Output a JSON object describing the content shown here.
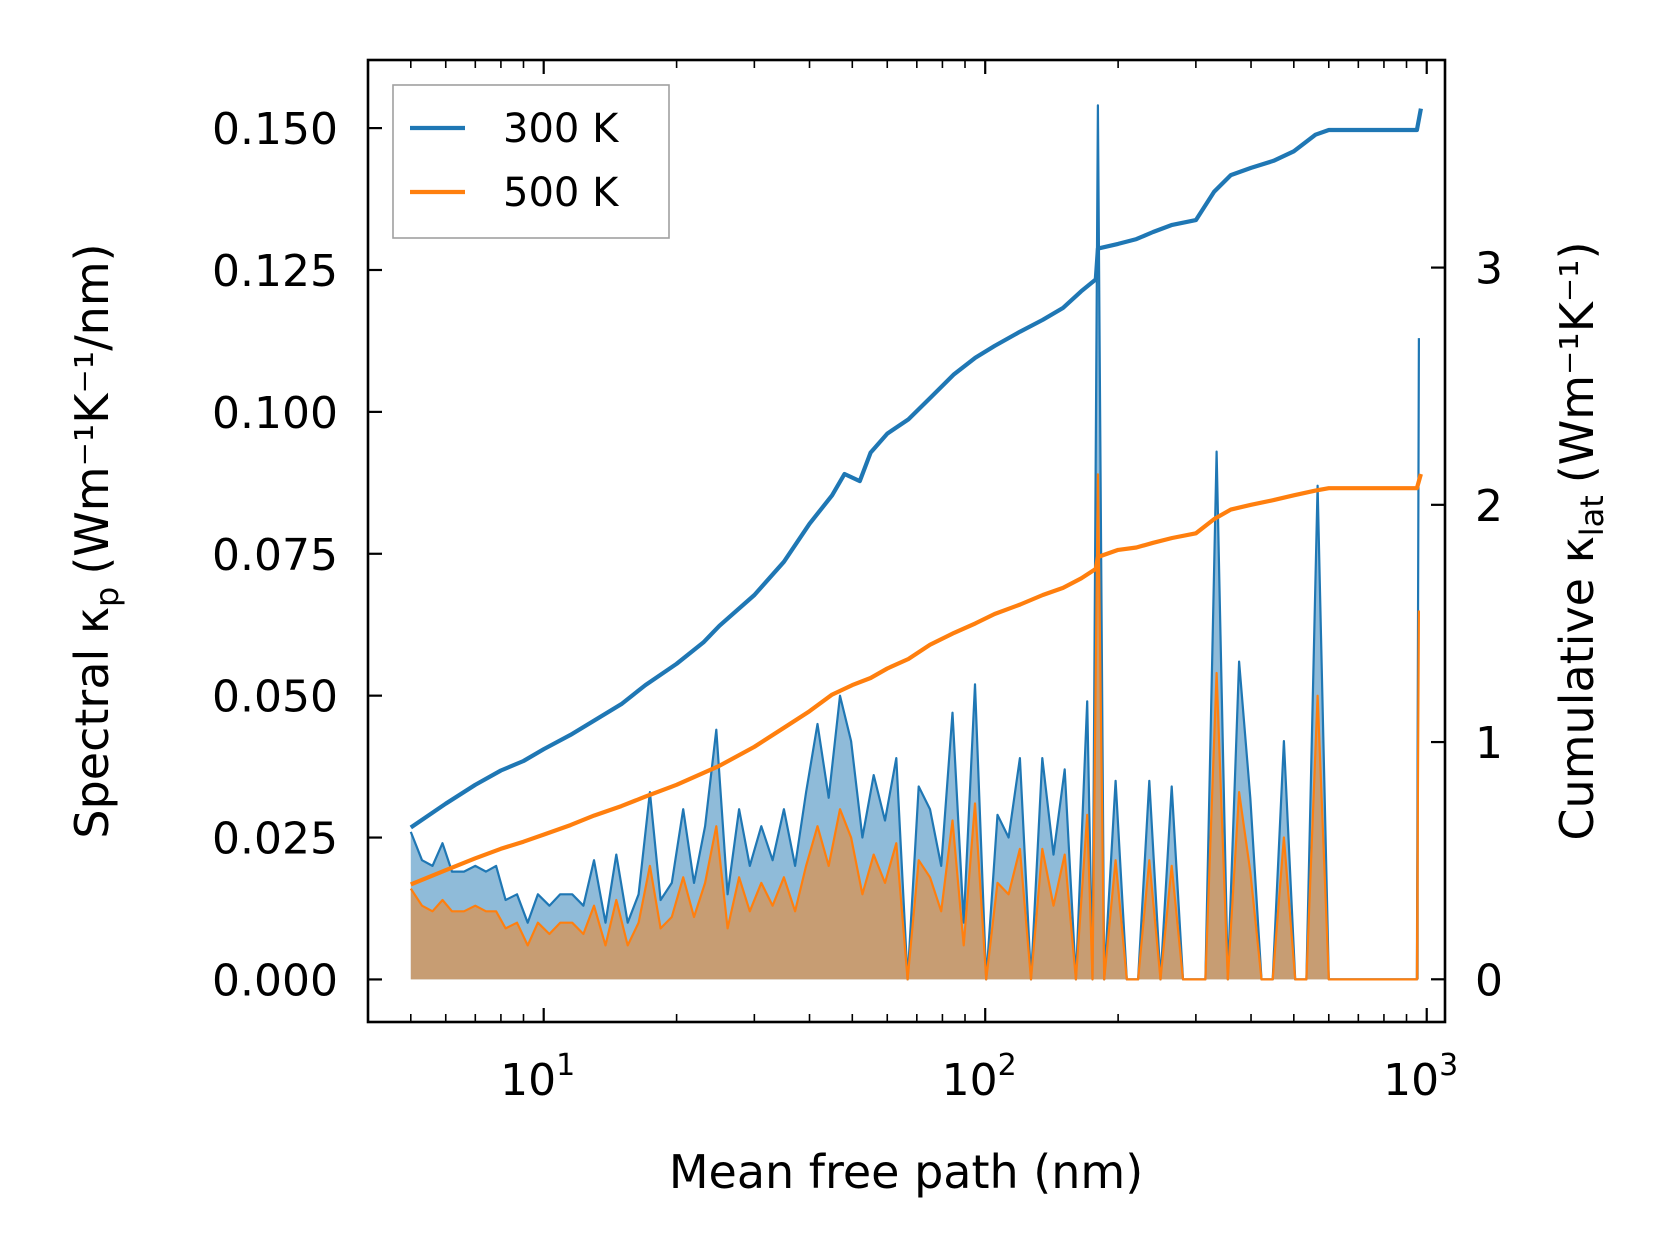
{
  "chart_data": {
    "type": "line",
    "title": "",
    "xlabel": "Mean free path (nm)",
    "ylabel_left": {
      "main": "Spectral κ",
      "sub": "p",
      "units": "(Wm⁻¹K⁻¹/nm)"
    },
    "ylabel_right": {
      "main": "Cumulative κ",
      "sub": "lat",
      "units": "(Wm⁻¹K⁻¹)"
    },
    "xscale": "log",
    "xlim": [
      4.0,
      1100
    ],
    "ylim_left": [
      -0.0075,
      0.162
    ],
    "ylim_right": [
      -0.18,
      3.875
    ],
    "x_ticks": [
      {
        "value": 10,
        "base": "10",
        "exp": "1"
      },
      {
        "value": 100,
        "base": "10",
        "exp": "2"
      },
      {
        "value": 1000,
        "base": "10",
        "exp": "3"
      }
    ],
    "y_ticks_left": [
      {
        "value": 0.0,
        "label": "0.000"
      },
      {
        "value": 0.025,
        "label": "0.025"
      },
      {
        "value": 0.05,
        "label": "0.050"
      },
      {
        "value": 0.075,
        "label": "0.075"
      },
      {
        "value": 0.1,
        "label": "0.100"
      },
      {
        "value": 0.125,
        "label": "0.125"
      },
      {
        "value": 0.15,
        "label": "0.150"
      }
    ],
    "y_ticks_right": [
      {
        "value": 0,
        "label": "0"
      },
      {
        "value": 1,
        "label": "1"
      },
      {
        "value": 2,
        "label": "2"
      },
      {
        "value": 3,
        "label": "3"
      }
    ],
    "legend": {
      "position": "top-left",
      "entries": [
        "300 K",
        "500 K"
      ]
    },
    "series": [
      {
        "name": "300 K",
        "color": "#1f77b4",
        "fill_color": "#1f77b4",
        "spectral": [
          [
            5.0,
            0.026
          ],
          [
            5.3,
            0.021
          ],
          [
            5.6,
            0.02
          ],
          [
            5.9,
            0.024
          ],
          [
            6.2,
            0.019
          ],
          [
            6.6,
            0.019
          ],
          [
            7.0,
            0.02
          ],
          [
            7.4,
            0.019
          ],
          [
            7.8,
            0.02
          ],
          [
            8.2,
            0.014
          ],
          [
            8.7,
            0.015
          ],
          [
            9.2,
            0.01
          ],
          [
            9.7,
            0.015
          ],
          [
            10.3,
            0.013
          ],
          [
            10.9,
            0.015
          ],
          [
            11.6,
            0.015
          ],
          [
            12.3,
            0.013
          ],
          [
            13.0,
            0.021
          ],
          [
            13.8,
            0.01
          ],
          [
            14.6,
            0.022
          ],
          [
            15.5,
            0.01
          ],
          [
            16.4,
            0.015
          ],
          [
            17.4,
            0.033
          ],
          [
            18.4,
            0.014
          ],
          [
            19.5,
            0.017
          ],
          [
            20.7,
            0.03
          ],
          [
            21.9,
            0.017
          ],
          [
            23.2,
            0.027
          ],
          [
            24.6,
            0.044
          ],
          [
            26.1,
            0.015
          ],
          [
            27.7,
            0.03
          ],
          [
            29.3,
            0.02
          ],
          [
            31.1,
            0.027
          ],
          [
            33.0,
            0.021
          ],
          [
            35.0,
            0.03
          ],
          [
            37.1,
            0.02
          ],
          [
            39.3,
            0.033
          ],
          [
            41.7,
            0.045
          ],
          [
            44.2,
            0.032
          ],
          [
            46.9,
            0.05
          ],
          [
            49.7,
            0.042
          ],
          [
            52.7,
            0.025
          ],
          [
            55.9,
            0.036
          ],
          [
            59.3,
            0.028
          ],
          [
            62.9,
            0.039
          ],
          [
            66.7,
            0.0
          ],
          [
            70.7,
            0.034
          ],
          [
            75.0,
            0.03
          ],
          [
            79.5,
            0.02
          ],
          [
            84.3,
            0.047
          ],
          [
            89.4,
            0.01
          ],
          [
            94.8,
            0.052
          ],
          [
            100.5,
            0.0
          ],
          [
            106.6,
            0.029
          ],
          [
            113.0,
            0.025
          ],
          [
            119.8,
            0.039
          ],
          [
            127.0,
            0.0
          ],
          [
            134.7,
            0.039
          ],
          [
            142.8,
            0.022
          ],
          [
            151.4,
            0.037
          ],
          [
            160.5,
            0.0
          ],
          [
            170.2,
            0.049
          ],
          [
            175.0,
            0.0
          ],
          [
            180.0,
            0.154
          ],
          [
            186.0,
            0.0
          ],
          [
            197.4,
            0.035
          ],
          [
            209.3,
            0.0
          ],
          [
            222.0,
            0.0
          ],
          [
            235.3,
            0.035
          ],
          [
            249.5,
            0.0
          ],
          [
            264.5,
            0.034
          ],
          [
            280.5,
            0.0
          ],
          [
            297.4,
            0.0
          ],
          [
            315.3,
            0.0
          ],
          [
            334.3,
            0.093
          ],
          [
            354.4,
            0.0
          ],
          [
            375.8,
            0.056
          ],
          [
            398.4,
            0.032
          ],
          [
            422.4,
            0.0
          ],
          [
            447.9,
            0.0
          ],
          [
            474.9,
            0.042
          ],
          [
            503.5,
            0.0
          ],
          [
            533.8,
            0.0
          ],
          [
            566.0,
            0.087
          ],
          [
            600.0,
            0.0
          ],
          [
            636.0,
            0.0
          ],
          [
            700.0,
            0.0
          ],
          [
            800.0,
            0.0
          ],
          [
            950.0,
            0.0
          ],
          [
            960.0,
            0.113
          ]
        ],
        "cumulative": [
          [
            5.0,
            0.64
          ],
          [
            6.0,
            0.74
          ],
          [
            7.0,
            0.82
          ],
          [
            8.0,
            0.88
          ],
          [
            9.0,
            0.92
          ],
          [
            10.0,
            0.97
          ],
          [
            11.5,
            1.03
          ],
          [
            13.0,
            1.09
          ],
          [
            15.0,
            1.16
          ],
          [
            17.0,
            1.24
          ],
          [
            20.0,
            1.33
          ],
          [
            23.0,
            1.42
          ],
          [
            25.0,
            1.49
          ],
          [
            30.0,
            1.62
          ],
          [
            35.0,
            1.76
          ],
          [
            40.0,
            1.92
          ],
          [
            45.0,
            2.04
          ],
          [
            48.0,
            2.13
          ],
          [
            52.0,
            2.1
          ],
          [
            55.0,
            2.22
          ],
          [
            60.0,
            2.3
          ],
          [
            67.0,
            2.36
          ],
          [
            75.0,
            2.45
          ],
          [
            85.0,
            2.55
          ],
          [
            95.0,
            2.62
          ],
          [
            105.0,
            2.67
          ],
          [
            120.0,
            2.73
          ],
          [
            135.0,
            2.78
          ],
          [
            150.0,
            2.83
          ],
          [
            165.0,
            2.9
          ],
          [
            178.0,
            2.95
          ],
          [
            180.0,
            3.08
          ],
          [
            200.0,
            3.1
          ],
          [
            220.0,
            3.12
          ],
          [
            240.0,
            3.15
          ],
          [
            265.0,
            3.18
          ],
          [
            300.0,
            3.2
          ],
          [
            330.0,
            3.32
          ],
          [
            360.0,
            3.39
          ],
          [
            400.0,
            3.42
          ],
          [
            450.0,
            3.45
          ],
          [
            500.0,
            3.49
          ],
          [
            560.0,
            3.56
          ],
          [
            600.0,
            3.58
          ],
          [
            950.0,
            3.58
          ],
          [
            970.0,
            3.67
          ]
        ]
      },
      {
        "name": "500 K",
        "color": "#ff7f0e",
        "fill_color": "#ff7f0e",
        "spectral": [
          [
            5.0,
            0.016
          ],
          [
            5.3,
            0.013
          ],
          [
            5.6,
            0.012
          ],
          [
            5.9,
            0.014
          ],
          [
            6.2,
            0.012
          ],
          [
            6.6,
            0.012
          ],
          [
            7.0,
            0.013
          ],
          [
            7.4,
            0.012
          ],
          [
            7.8,
            0.012
          ],
          [
            8.2,
            0.009
          ],
          [
            8.7,
            0.01
          ],
          [
            9.2,
            0.006
          ],
          [
            9.7,
            0.01
          ],
          [
            10.3,
            0.008
          ],
          [
            10.9,
            0.01
          ],
          [
            11.6,
            0.01
          ],
          [
            12.3,
            0.008
          ],
          [
            13.0,
            0.013
          ],
          [
            13.8,
            0.006
          ],
          [
            14.6,
            0.014
          ],
          [
            15.5,
            0.006
          ],
          [
            16.4,
            0.01
          ],
          [
            17.4,
            0.02
          ],
          [
            18.4,
            0.009
          ],
          [
            19.5,
            0.011
          ],
          [
            20.7,
            0.018
          ],
          [
            21.9,
            0.011
          ],
          [
            23.2,
            0.017
          ],
          [
            24.6,
            0.027
          ],
          [
            26.1,
            0.009
          ],
          [
            27.7,
            0.018
          ],
          [
            29.3,
            0.012
          ],
          [
            31.1,
            0.017
          ],
          [
            33.0,
            0.013
          ],
          [
            35.0,
            0.018
          ],
          [
            37.1,
            0.012
          ],
          [
            39.3,
            0.02
          ],
          [
            41.7,
            0.027
          ],
          [
            44.2,
            0.02
          ],
          [
            46.9,
            0.03
          ],
          [
            49.7,
            0.025
          ],
          [
            52.7,
            0.015
          ],
          [
            55.9,
            0.022
          ],
          [
            59.3,
            0.017
          ],
          [
            62.9,
            0.024
          ],
          [
            66.7,
            0.0
          ],
          [
            70.7,
            0.021
          ],
          [
            75.0,
            0.018
          ],
          [
            79.5,
            0.012
          ],
          [
            84.3,
            0.028
          ],
          [
            89.4,
            0.006
          ],
          [
            94.8,
            0.031
          ],
          [
            100.5,
            0.0
          ],
          [
            106.6,
            0.017
          ],
          [
            113.0,
            0.015
          ],
          [
            119.8,
            0.023
          ],
          [
            127.0,
            0.0
          ],
          [
            134.7,
            0.023
          ],
          [
            142.8,
            0.013
          ],
          [
            151.4,
            0.022
          ],
          [
            160.5,
            0.0
          ],
          [
            170.2,
            0.029
          ],
          [
            175.0,
            0.0
          ],
          [
            180.0,
            0.089
          ],
          [
            186.0,
            0.0
          ],
          [
            197.4,
            0.021
          ],
          [
            209.3,
            0.0
          ],
          [
            222.0,
            0.0
          ],
          [
            235.3,
            0.021
          ],
          [
            249.5,
            0.0
          ],
          [
            264.5,
            0.02
          ],
          [
            280.5,
            0.0
          ],
          [
            297.4,
            0.0
          ],
          [
            315.3,
            0.0
          ],
          [
            334.3,
            0.054
          ],
          [
            354.4,
            0.0
          ],
          [
            375.8,
            0.033
          ],
          [
            398.4,
            0.019
          ],
          [
            422.4,
            0.0
          ],
          [
            447.9,
            0.0
          ],
          [
            474.9,
            0.025
          ],
          [
            503.5,
            0.0
          ],
          [
            533.8,
            0.0
          ],
          [
            566.0,
            0.05
          ],
          [
            600.0,
            0.0
          ],
          [
            636.0,
            0.0
          ],
          [
            700.0,
            0.0
          ],
          [
            800.0,
            0.0
          ],
          [
            950.0,
            0.0
          ],
          [
            960.0,
            0.065
          ]
        ],
        "cumulative": [
          [
            5.0,
            0.4
          ],
          [
            6.0,
            0.46
          ],
          [
            7.0,
            0.51
          ],
          [
            8.0,
            0.55
          ],
          [
            9.0,
            0.58
          ],
          [
            10.0,
            0.61
          ],
          [
            11.5,
            0.65
          ],
          [
            13.0,
            0.69
          ],
          [
            15.0,
            0.73
          ],
          [
            17.0,
            0.77
          ],
          [
            20.0,
            0.82
          ],
          [
            23.0,
            0.87
          ],
          [
            25.0,
            0.9
          ],
          [
            30.0,
            0.98
          ],
          [
            35.0,
            1.06
          ],
          [
            40.0,
            1.13
          ],
          [
            45.0,
            1.2
          ],
          [
            50.0,
            1.24
          ],
          [
            55.0,
            1.27
          ],
          [
            60.0,
            1.31
          ],
          [
            67.0,
            1.35
          ],
          [
            75.0,
            1.41
          ],
          [
            85.0,
            1.46
          ],
          [
            95.0,
            1.5
          ],
          [
            105.0,
            1.54
          ],
          [
            120.0,
            1.58
          ],
          [
            135.0,
            1.62
          ],
          [
            150.0,
            1.65
          ],
          [
            165.0,
            1.69
          ],
          [
            178.0,
            1.73
          ],
          [
            180.0,
            1.78
          ],
          [
            200.0,
            1.81
          ],
          [
            220.0,
            1.82
          ],
          [
            240.0,
            1.84
          ],
          [
            265.0,
            1.86
          ],
          [
            300.0,
            1.88
          ],
          [
            330.0,
            1.94
          ],
          [
            360.0,
            1.98
          ],
          [
            400.0,
            2.0
          ],
          [
            450.0,
            2.02
          ],
          [
            500.0,
            2.04
          ],
          [
            560.0,
            2.06
          ],
          [
            600.0,
            2.07
          ],
          [
            950.0,
            2.07
          ],
          [
            970.0,
            2.13
          ]
        ]
      }
    ]
  }
}
